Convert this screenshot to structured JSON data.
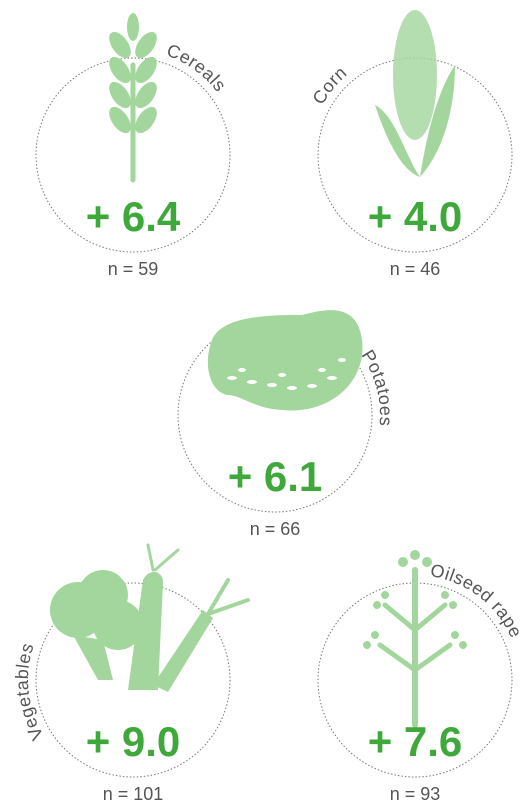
{
  "items": [
    {
      "label": "Cereals",
      "value": "+ 6.4",
      "n": "n = 59"
    },
    {
      "label": "Corn",
      "value": "+ 4.0",
      "n": "n = 46"
    },
    {
      "label": "Potatoes",
      "value": "+ 6.1",
      "n": "n = 66"
    },
    {
      "label": "Vegetables",
      "value": "+ 9.0",
      "n": "n = 101"
    },
    {
      "label": "Oilseed rape",
      "value": "+ 7.6",
      "n": "n = 93"
    }
  ]
}
